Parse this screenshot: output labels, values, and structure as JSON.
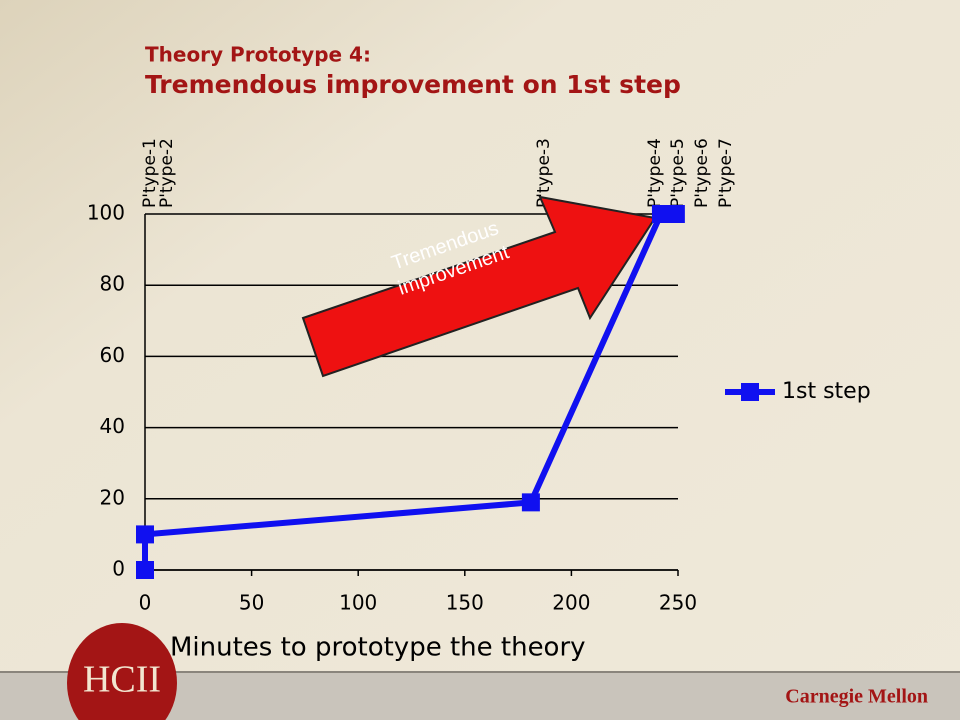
{
  "chart_data": {
    "type": "line",
    "title": "Theory Prototype 4:",
    "subtitle": "Tremendous improvement on 1st step",
    "x_label": "Minutes to prototype the theory",
    "x": [
      0,
      0,
      181,
      242,
      249
    ],
    "series": [
      {
        "name": "1st step",
        "color": "#1010f0",
        "values": [
          0,
          10,
          19,
          100,
          100
        ]
      }
    ],
    "xlim": [
      0,
      250
    ],
    "xticks": [
      0,
      50,
      100,
      150,
      200,
      250
    ],
    "ylim": [
      0,
      100
    ],
    "yticks": [
      0,
      20,
      40,
      60,
      80,
      100
    ],
    "grid": true,
    "legend": "right",
    "top_labels": [
      "P'type-1",
      "P'type-2",
      "P'type-3",
      "P'type-4",
      "P'type-5",
      "P'type-6",
      "P'type-7"
    ],
    "annotation": "Tremendous improvement"
  },
  "footer": {
    "logo_left": "HCII",
    "logo_right": "Carnegie Mellon"
  }
}
